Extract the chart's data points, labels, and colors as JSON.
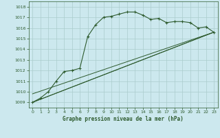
{
  "title": "Graphe pression niveau de la mer (hPa)",
  "bg_color": "#cce8ee",
  "grid_color": "#aacccc",
  "line_color": "#2d5a2d",
  "xlim": [
    -0.5,
    23.5
  ],
  "ylim": [
    1008.5,
    1018.5
  ],
  "yticks": [
    1009,
    1010,
    1011,
    1012,
    1013,
    1014,
    1015,
    1016,
    1017,
    1018
  ],
  "xticks": [
    0,
    1,
    2,
    3,
    4,
    5,
    6,
    7,
    8,
    9,
    10,
    11,
    12,
    13,
    14,
    15,
    16,
    17,
    18,
    19,
    20,
    21,
    22,
    23
  ],
  "curve": {
    "x": [
      0,
      1,
      2,
      3,
      4,
      5,
      6,
      7,
      8,
      9,
      10,
      11,
      12,
      13,
      14,
      15,
      16,
      17,
      18,
      19,
      20,
      21,
      22,
      23
    ],
    "y": [
      1009.0,
      1009.4,
      1010.0,
      1011.0,
      1011.9,
      1012.0,
      1012.2,
      1015.2,
      1016.3,
      1017.0,
      1017.1,
      1017.3,
      1017.5,
      1017.5,
      1017.2,
      1016.8,
      1016.9,
      1016.5,
      1016.6,
      1016.6,
      1016.5,
      1016.0,
      1016.1,
      1015.6
    ]
  },
  "line1": {
    "x": [
      0,
      23
    ],
    "y": [
      1009.0,
      1015.6
    ]
  },
  "line2": {
    "x": [
      0,
      23
    ],
    "y": [
      1009.0,
      1015.6
    ]
  },
  "line3": {
    "x": [
      0,
      23
    ],
    "y": [
      1009.8,
      1015.6
    ]
  }
}
